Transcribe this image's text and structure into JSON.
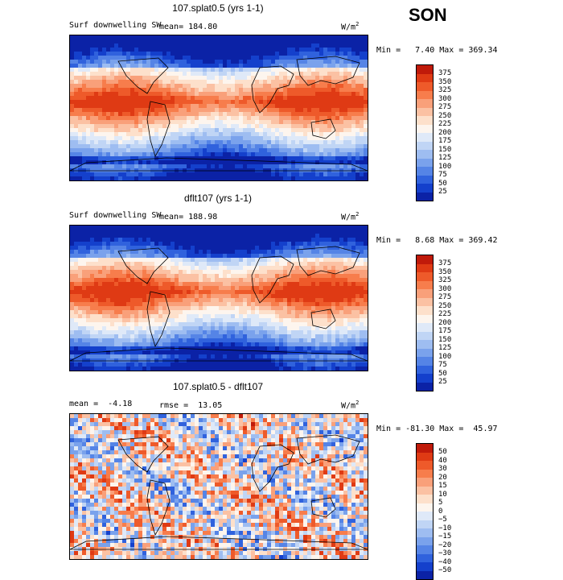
{
  "season": "SON",
  "palette_abs": [
    "#8b0000",
    "#c01a0a",
    "#df3a14",
    "#ee5a2a",
    "#f77d4c",
    "#f9a07a",
    "#fbc1a3",
    "#fde0cb",
    "#fdf5ee",
    "#dfe9f8",
    "#c0d5f5",
    "#9ebdf1",
    "#7aa2ec",
    "#5584e6",
    "#3062dd",
    "#1440cc",
    "#0b22a6",
    "#000c82"
  ],
  "palette_diff": [
    "#8b0000",
    "#c01a0a",
    "#df3a14",
    "#ee5a2a",
    "#f77d4c",
    "#f9a07a",
    "#fbc1a3",
    "#fde0cb",
    "#fdf5ee",
    "#dfe9f8",
    "#c0d5f5",
    "#9ebdf1",
    "#7aa2ec",
    "#5584e6",
    "#3062dd",
    "#1440cc",
    "#0b22a6",
    "#000c82"
  ],
  "panels": [
    {
      "title": "107.splat0.5 (yrs 1-1)",
      "variable": "Surf downwelling SW",
      "stat": "mean= 184.80",
      "units": "W/m",
      "units_exp": "2",
      "minmax": "Min =   7.40 Max = 369.34",
      "levels": [
        "375",
        "350",
        "325",
        "300",
        "275",
        "250",
        "225",
        "200",
        "175",
        "150",
        "125",
        "100",
        "75",
        "50",
        "25"
      ]
    },
    {
      "title": "dflt107 (yrs 1-1)",
      "variable": "Surf downwelling SW",
      "stat": "mean= 188.98",
      "units": "W/m",
      "units_exp": "2",
      "minmax": "Min =   8.68 Max = 369.42",
      "levels": [
        "375",
        "350",
        "325",
        "300",
        "275",
        "250",
        "225",
        "200",
        "175",
        "150",
        "125",
        "100",
        "75",
        "50",
        "25"
      ]
    },
    {
      "title": "107.splat0.5 - dflt107",
      "variable": "mean =  -4.18",
      "stat": "rmse =  13.05",
      "units": "W/m",
      "units_exp": "2",
      "minmax": "Min = -81.30 Max =  45.97",
      "levels": [
        "50",
        "40",
        "30",
        "20",
        "15",
        "10",
        "5",
        "0",
        "−5",
        "−10",
        "−15",
        "−20",
        "−30",
        "−40",
        "−50"
      ]
    }
  ]
}
